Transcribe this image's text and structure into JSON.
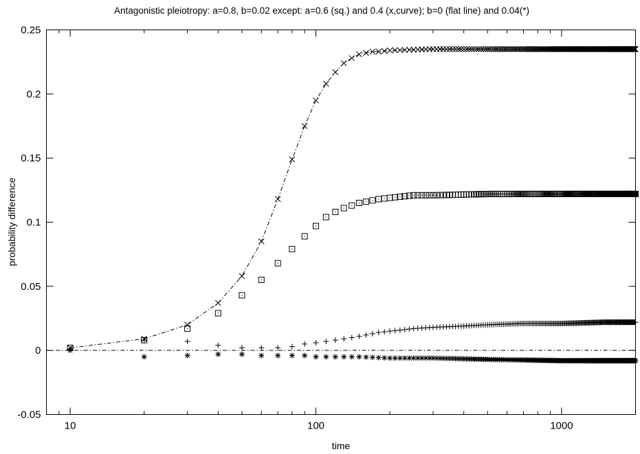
{
  "chart_data": {
    "type": "scatter",
    "title": "Antagonistic pleiotropy: a=0.8, b=0.02 except: a=0.6 (sq.) and 0.4 (x,curve); b=0 (flat line) and 0.04(*)",
    "xlabel": "time",
    "ylabel": "probability difference",
    "x_scale": "log",
    "xlim": [
      8,
      2000
    ],
    "ylim": [
      -0.05,
      0.25
    ],
    "x_ticks": [
      {
        "value": 10,
        "label": "10"
      },
      {
        "value": 100,
        "label": "100"
      },
      {
        "value": 1000,
        "label": "1000"
      }
    ],
    "y_ticks": [
      {
        "value": -0.05,
        "label": "-0.05"
      },
      {
        "value": 0,
        "label": "0"
      },
      {
        "value": 0.05,
        "label": "0.05"
      },
      {
        "value": 0.1,
        "label": "0.1"
      },
      {
        "value": 0.15,
        "label": "0.15"
      },
      {
        "value": 0.2,
        "label": "0.2"
      },
      {
        "value": 0.25,
        "label": "0.25"
      }
    ],
    "x_step": 10,
    "x_max": 2000,
    "series": [
      {
        "marker": "x",
        "with_curve": true,
        "x": [
          10,
          20,
          30,
          40,
          50,
          60,
          70,
          80,
          90,
          100,
          110,
          120,
          130,
          140,
          150,
          160,
          170,
          180,
          200,
          300,
          500,
          1000,
          2000
        ],
        "y": [
          0.002,
          0.009,
          0.02,
          0.037,
          0.058,
          0.085,
          0.118,
          0.149,
          0.175,
          0.195,
          0.208,
          0.217,
          0.224,
          0.228,
          0.231,
          0.232,
          0.233,
          0.233,
          0.234,
          0.235,
          0.235,
          0.235,
          0.235
        ]
      },
      {
        "marker": "square",
        "x": [
          10,
          20,
          30,
          40,
          50,
          60,
          70,
          80,
          90,
          100,
          110,
          120,
          130,
          140,
          150,
          160,
          170,
          180,
          200,
          250,
          300,
          500,
          1000,
          2000
        ],
        "y": [
          0.002,
          0.008,
          0.017,
          0.029,
          0.043,
          0.055,
          0.068,
          0.079,
          0.089,
          0.097,
          0.104,
          0.108,
          0.111,
          0.113,
          0.115,
          0.116,
          0.117,
          0.118,
          0.119,
          0.121,
          0.121,
          0.122,
          0.122,
          0.122
        ]
      },
      {
        "marker": "plus",
        "x": [
          10,
          20,
          30,
          40,
          50,
          60,
          70,
          80,
          90,
          100,
          110,
          120,
          130,
          140,
          150,
          160,
          170,
          180,
          200,
          250,
          300,
          400,
          500,
          700,
          1000,
          1500,
          2000
        ],
        "y": [
          0.001,
          0.008,
          0.007,
          0.004,
          0.002,
          0.002,
          0.002,
          0.003,
          0.005,
          0.006,
          0.007,
          0.008,
          0.009,
          0.01,
          0.011,
          0.012,
          0.013,
          0.014,
          0.015,
          0.017,
          0.018,
          0.019,
          0.02,
          0.021,
          0.021,
          0.022,
          0.022
        ]
      },
      {
        "marker": "star",
        "x": [
          10,
          20,
          30,
          40,
          50,
          60,
          70,
          80,
          90,
          100,
          150,
          200,
          300,
          500,
          1000,
          2000
        ],
        "y": [
          0.0,
          -0.005,
          -0.004,
          -0.003,
          -0.003,
          -0.004,
          -0.004,
          -0.004,
          -0.004,
          -0.005,
          -0.005,
          -0.006,
          -0.006,
          -0.007,
          -0.008,
          -0.008
        ]
      },
      {
        "marker": "none",
        "line": "flat",
        "x": [
          8,
          2000
        ],
        "y": [
          0.0,
          0.0
        ]
      }
    ]
  }
}
